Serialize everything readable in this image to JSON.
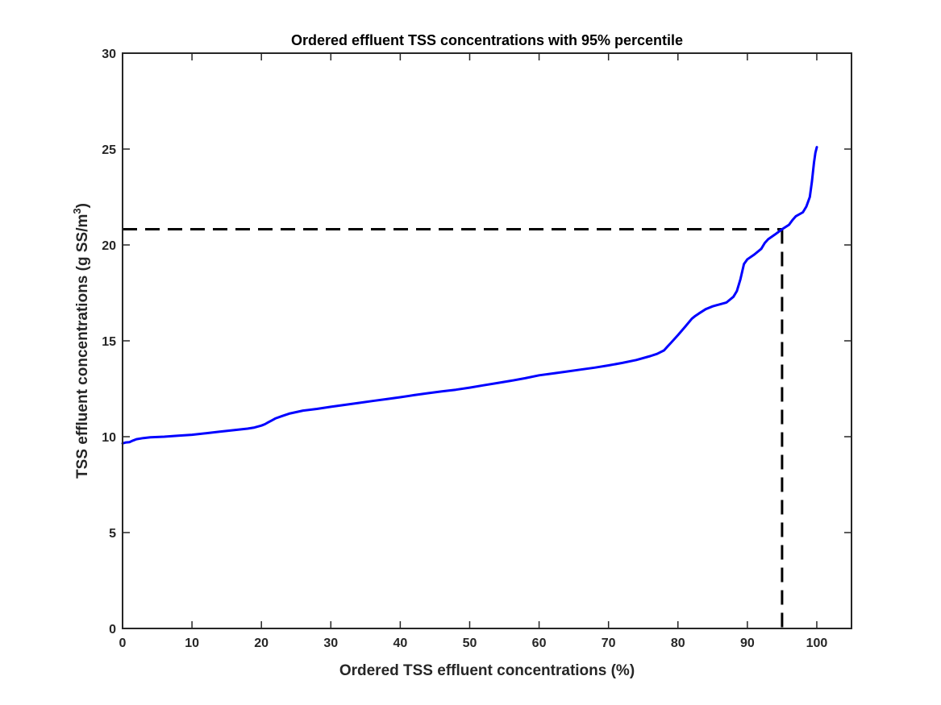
{
  "chart_data": {
    "type": "line",
    "title": "Ordered effluent TSS concentrations with 95% percentile",
    "xlabel": "Ordered TSS effluent concentrations (%)",
    "ylabel_main": "TSS effluent concentrations (g SS/m",
    "ylabel_sup": "3",
    "ylabel_close": ")",
    "xlim": [
      0,
      105
    ],
    "ylim": [
      0,
      30
    ],
    "xticks": [
      0,
      10,
      20,
      30,
      40,
      50,
      60,
      70,
      80,
      90,
      100
    ],
    "yticks": [
      0,
      5,
      10,
      15,
      20,
      25,
      30
    ],
    "grid": false,
    "colors": {
      "series": "#0000ff",
      "reference": "#000000",
      "axes": "#262626"
    },
    "series": [
      {
        "points": [
          [
            0,
            9.65
          ],
          [
            0.5,
            9.7
          ],
          [
            1,
            9.72
          ],
          [
            1.5,
            9.8
          ],
          [
            2,
            9.87
          ],
          [
            3,
            9.93
          ],
          [
            4,
            9.97
          ],
          [
            6,
            10.0
          ],
          [
            8,
            10.05
          ],
          [
            10,
            10.1
          ],
          [
            12,
            10.18
          ],
          [
            14,
            10.26
          ],
          [
            16,
            10.34
          ],
          [
            18,
            10.42
          ],
          [
            19,
            10.48
          ],
          [
            20,
            10.58
          ],
          [
            20.5,
            10.65
          ],
          [
            21,
            10.75
          ],
          [
            21.5,
            10.85
          ],
          [
            22,
            10.95
          ],
          [
            23,
            11.08
          ],
          [
            24,
            11.2
          ],
          [
            25,
            11.28
          ],
          [
            26,
            11.36
          ],
          [
            28,
            11.45
          ],
          [
            30,
            11.56
          ],
          [
            32,
            11.66
          ],
          [
            34,
            11.76
          ],
          [
            36,
            11.86
          ],
          [
            38,
            11.96
          ],
          [
            40,
            12.06
          ],
          [
            42,
            12.17
          ],
          [
            44,
            12.27
          ],
          [
            46,
            12.36
          ],
          [
            48,
            12.45
          ],
          [
            50,
            12.56
          ],
          [
            52,
            12.68
          ],
          [
            54,
            12.8
          ],
          [
            56,
            12.92
          ],
          [
            58,
            13.05
          ],
          [
            60,
            13.2
          ],
          [
            62,
            13.3
          ],
          [
            64,
            13.4
          ],
          [
            66,
            13.5
          ],
          [
            68,
            13.6
          ],
          [
            70,
            13.72
          ],
          [
            72,
            13.85
          ],
          [
            74,
            14.0
          ],
          [
            76,
            14.2
          ],
          [
            77,
            14.32
          ],
          [
            78,
            14.5
          ],
          [
            78.5,
            14.7
          ],
          [
            79,
            14.9
          ],
          [
            80,
            15.3
          ],
          [
            81,
            15.72
          ],
          [
            82,
            16.15
          ],
          [
            82.5,
            16.3
          ],
          [
            83,
            16.42
          ],
          [
            84,
            16.65
          ],
          [
            85,
            16.8
          ],
          [
            86,
            16.9
          ],
          [
            87,
            17.0
          ],
          [
            88,
            17.3
          ],
          [
            88.5,
            17.6
          ],
          [
            89,
            18.2
          ],
          [
            89.5,
            19.0
          ],
          [
            90,
            19.25
          ],
          [
            91,
            19.5
          ],
          [
            92,
            19.8
          ],
          [
            92.5,
            20.1
          ],
          [
            93,
            20.3
          ],
          [
            94,
            20.55
          ],
          [
            95,
            20.82
          ],
          [
            96,
            21.05
          ],
          [
            96.5,
            21.3
          ],
          [
            97,
            21.5
          ],
          [
            98,
            21.7
          ],
          [
            98.5,
            22.0
          ],
          [
            99,
            22.5
          ],
          [
            99.3,
            23.3
          ],
          [
            99.6,
            24.3
          ],
          [
            99.8,
            24.8
          ],
          [
            100,
            25.1
          ]
        ]
      }
    ],
    "reference_lines": [
      {
        "style": "dashed",
        "points": [
          [
            0,
            20.82
          ],
          [
            95,
            20.82
          ]
        ]
      },
      {
        "style": "dashed",
        "points": [
          [
            95,
            20.82
          ],
          [
            95,
            0
          ]
        ]
      }
    ]
  }
}
